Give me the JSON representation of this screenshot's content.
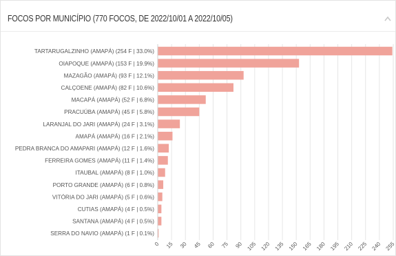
{
  "panel": {
    "title": "FOCOS POR MUNICÍPIO (770 FOCOS, DE 2022/10/01 A 2022/10/05)",
    "collapse_icon": "chevron-up-icon"
  },
  "colors": {
    "bar": "#f0a39a",
    "grid": "#e6e6e6",
    "text": "#555555",
    "title": "#333333"
  },
  "chart_data": {
    "type": "bar",
    "orientation": "horizontal",
    "title": "FOCOS POR MUNICÍPIO (770 FOCOS, DE 2022/10/01 A 2022/10/05)",
    "categories": [
      "TARTARUGALZINHO (AMAPÁ) (254 F | 33.0%)",
      "OIAPOQUE (AMAPÁ) (153 F | 19.9%)",
      "MAZAGÃO (AMAPÁ) (93 F | 12.1%)",
      "CALÇOENE (AMAPÁ) (82 F | 10.6%)",
      "MACAPÁ (AMAPÁ) (52 F | 6.8%)",
      "PRACUÚBA (AMAPÁ) (45 F | 5.8%)",
      "LARANJAL DO JARI (AMAPÁ) (24 F | 3.1%)",
      "AMAPÁ (AMAPÁ) (16 F | 2.1%)",
      "PEDRA BRANCA DO AMAPARI (AMAPÁ) (12 F | 1.6%)",
      "FERREIRA GOMES (AMAPÁ) (11 F | 1.4%)",
      "ITAUBAL (AMAPÁ) (8 F | 1.0%)",
      "PORTO GRANDE (AMAPÁ) (6 F | 0.8%)",
      "VITÓRIA DO JARI (AMAPÁ) (5 F | 0.6%)",
      "CUTIAS (AMAPÁ) (4 F | 0.5%)",
      "SANTANA (AMAPÁ) (4 F | 0.5%)",
      "SERRA DO NAVIO (AMAPÁ) (1 F | 0.1%)"
    ],
    "values": [
      254,
      153,
      93,
      82,
      52,
      45,
      24,
      16,
      12,
      11,
      8,
      6,
      5,
      4,
      4,
      1
    ],
    "xlim": [
      0,
      255
    ],
    "xticks": [
      0,
      15,
      30,
      45,
      60,
      75,
      90,
      105,
      120,
      135,
      150,
      165,
      180,
      195,
      210,
      225,
      240,
      255
    ],
    "grid": "vertical",
    "legend": "none"
  }
}
